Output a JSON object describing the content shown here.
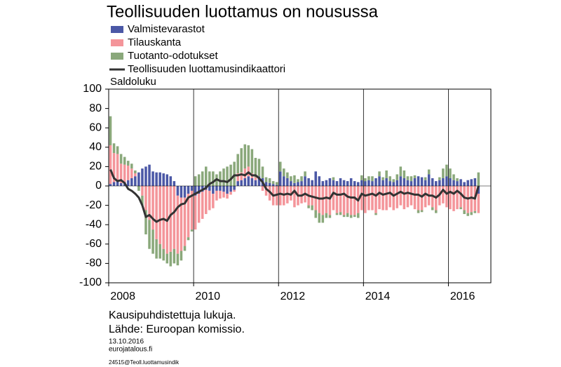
{
  "chart_data": {
    "type": "bar-line",
    "title": "Teollisuuden luottamus on nousussa",
    "y_label": "Saldoluku",
    "notes": [
      "Kausipuhdistettuja lukuja.",
      "Lähde: Euroopan komissio."
    ],
    "date": "13.10.2016",
    "site": "eurojatalous.fi",
    "code": "24515@Teoll.luottamusindik",
    "categories": [
      "2008",
      null,
      null,
      null,
      null,
      null,
      null,
      null,
      null,
      null,
      null,
      null,
      null,
      null,
      null,
      null,
      null,
      null,
      null,
      null,
      null,
      null,
      null,
      null,
      "2010",
      null,
      null,
      null,
      null,
      null,
      null,
      null,
      null,
      null,
      null,
      null,
      null,
      null,
      null,
      null,
      null,
      null,
      null,
      null,
      null,
      null,
      null,
      null,
      "2012",
      null,
      null,
      null,
      null,
      null,
      null,
      null,
      null,
      null,
      null,
      null,
      null,
      null,
      null,
      null,
      null,
      null,
      null,
      null,
      null,
      null,
      null,
      null,
      "2014",
      null,
      null,
      null,
      null,
      null,
      null,
      null,
      null,
      null,
      null,
      null,
      null,
      null,
      null,
      null,
      null,
      null,
      null,
      null,
      null,
      null,
      null,
      null,
      "2016",
      null,
      null,
      null,
      null,
      null,
      null,
      null,
      null
    ],
    "series": [
      {
        "name": "Valmistevarastot",
        "type": "bar",
        "color": "#4b58a6",
        "values": [
          2,
          4,
          5,
          3,
          4,
          6,
          8,
          10,
          14,
          18,
          20,
          22,
          15,
          14,
          14,
          13,
          12,
          10,
          5,
          -10,
          -12,
          -12,
          -8,
          -5,
          -10,
          -8,
          -6,
          -4,
          -5,
          -8,
          -5,
          -5,
          -6,
          -8,
          -6,
          -4,
          5,
          6,
          8,
          10,
          8,
          6,
          10,
          8,
          4,
          3,
          2,
          1,
          15,
          10,
          8,
          5,
          3,
          4,
          5,
          10,
          8,
          6,
          15,
          10,
          5,
          6,
          8,
          6,
          5,
          8,
          6,
          5,
          8,
          5,
          4,
          6,
          5,
          6,
          5,
          8,
          10,
          6,
          8,
          5,
          4,
          6,
          10,
          8,
          6,
          5,
          8,
          10,
          9,
          6,
          12,
          8,
          5,
          6,
          8,
          10,
          8,
          6,
          5,
          7,
          4,
          6,
          7,
          8,
          -8
        ]
      },
      {
        "name": "Tilauskanta",
        "type": "bar",
        "color": "#f4959a",
        "values": [
          40,
          30,
          28,
          20,
          18,
          15,
          10,
          3,
          0,
          -10,
          -25,
          -35,
          -45,
          -55,
          -60,
          -65,
          -70,
          -68,
          -65,
          -60,
          -55,
          -50,
          -45,
          -40,
          -35,
          -30,
          -28,
          -25,
          -20,
          -15,
          -10,
          -8,
          -6,
          -5,
          -3,
          -2,
          8,
          8,
          10,
          10,
          5,
          3,
          0,
          -5,
          -10,
          -15,
          -20,
          -20,
          -20,
          -20,
          -18,
          -15,
          -22,
          -20,
          -18,
          -17,
          -20,
          -20,
          -25,
          -28,
          -30,
          -28,
          -30,
          -25,
          -28,
          -27,
          -30,
          -28,
          -30,
          -30,
          -28,
          -25,
          -28,
          -25,
          -25,
          -28,
          -24,
          -25,
          -25,
          -22,
          -25,
          -23,
          -20,
          -24,
          -22,
          -20,
          -24,
          -25,
          -25,
          -22,
          -20,
          -22,
          -25,
          -20,
          -18,
          -22,
          -24,
          -26,
          -24,
          -22,
          -25,
          -28,
          -27,
          -26,
          -20
        ]
      },
      {
        "name": "Tuotanto-odotukset",
        "type": "bar",
        "color": "#8aa87b",
        "values": [
          30,
          10,
          8,
          10,
          8,
          5,
          5,
          3,
          -5,
          -10,
          -25,
          -30,
          -25,
          -20,
          -15,
          -12,
          -10,
          -15,
          -15,
          -12,
          -10,
          -5,
          -3,
          -2,
          10,
          12,
          15,
          20,
          15,
          15,
          12,
          15,
          18,
          20,
          22,
          25,
          20,
          25,
          25,
          22,
          25,
          20,
          18,
          12,
          5,
          5,
          3,
          3,
          10,
          8,
          6,
          5,
          8,
          3,
          5,
          5,
          -3,
          -5,
          -8,
          -10,
          -8,
          -5,
          -3,
          3,
          -2,
          -3,
          -2,
          -4,
          -3,
          -2,
          -5,
          5,
          3,
          4,
          5,
          -2,
          5,
          3,
          8,
          5,
          3,
          6,
          10,
          8,
          4,
          5,
          3,
          -3,
          -2,
          3,
          5,
          -3,
          -3,
          3,
          10,
          12,
          10,
          6,
          3,
          -2,
          -4,
          -3,
          -3,
          -2,
          14
        ]
      },
      {
        "name": "Teollisuuden luottamusindikaattori",
        "type": "line",
        "color": "#333333",
        "values": [
          17,
          8,
          5,
          6,
          3,
          -3,
          -5,
          -8,
          -12,
          -20,
          -32,
          -30,
          -34,
          -37,
          -35,
          -34,
          -36,
          -30,
          -27,
          -22,
          -19,
          -18,
          -12,
          -10,
          -8,
          -6,
          -4,
          -2,
          2,
          4,
          7,
          5,
          5,
          4,
          7,
          11,
          11,
          12,
          11,
          14,
          11,
          11,
          8,
          4,
          -3,
          -6,
          -10,
          -9,
          -8,
          -9,
          -8,
          -9,
          -5,
          -10,
          -10,
          -8,
          -10,
          -11,
          -12,
          -13,
          -13,
          -12,
          -13,
          -7,
          -9,
          -9,
          -8,
          -11,
          -12,
          -12,
          -15,
          -8,
          -10,
          -9,
          -8,
          -10,
          -7,
          -9,
          -8,
          -7,
          -10,
          -8,
          -6,
          -8,
          -7,
          -8,
          -9,
          -9,
          -11,
          -8,
          -10,
          -10,
          -12,
          -9,
          -4,
          -8,
          -6,
          -8,
          -5,
          -8,
          -12,
          -13,
          -12,
          -13,
          0
        ]
      }
    ],
    "ylim": [
      -100,
      100
    ],
    "yticks": [
      -100,
      -80,
      -60,
      -40,
      -20,
      0,
      20,
      40,
      60,
      80,
      100
    ],
    "grid": "x"
  }
}
